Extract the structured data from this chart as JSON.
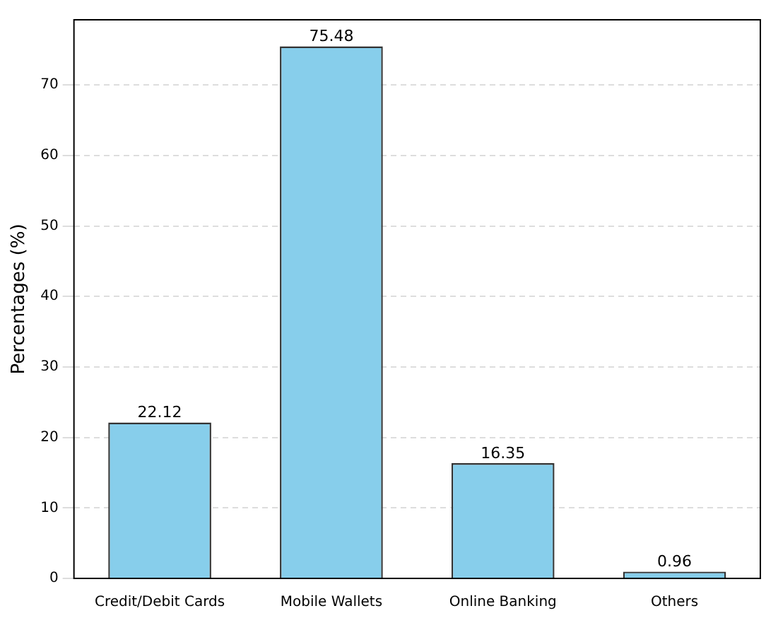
{
  "chart_data": {
    "type": "bar",
    "ylabel": "Percentages (%)",
    "categories": [
      "Credit/Debit Cards",
      "Mobile Wallets",
      "Online Banking",
      "Others"
    ],
    "values": [
      22.12,
      75.48,
      16.35,
      0.96
    ],
    "color": "#87ceeb",
    "ylim": [
      0,
      79.25
    ],
    "yticks": [
      0,
      10,
      20,
      30,
      40,
      50,
      60,
      70
    ],
    "grid": "y",
    "data_labels": true
  }
}
